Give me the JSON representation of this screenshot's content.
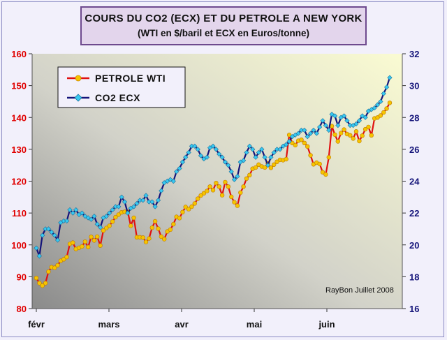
{
  "title": {
    "line1": "COURS DU CO2 (ECX) ET DU PETROLE A NEW YORK",
    "line2": "(WTI en $/baril et ECX en Euros/tonne)"
  },
  "credit": "RayBon Juillet 2008",
  "colors": {
    "wti_line": "#e01010",
    "wti_marker": "#f5c400",
    "ecx_line": "#14147a",
    "ecx_marker": "#38c8f0",
    "left_axis": "#e00000",
    "right_axis": "#15157a"
  },
  "chart_data": {
    "type": "line",
    "title": "COURS DU CO2 (ECX) ET DU PETROLE A NEW YORK",
    "subtitle": "(WTI en $/baril et ECX en Euros/tonne)",
    "x_labels": [
      "févr",
      "mars",
      "avr",
      "mai",
      "juin"
    ],
    "y_left": {
      "lim": [
        80,
        160
      ],
      "ticks": [
        80,
        90,
        100,
        110,
        120,
        130,
        140,
        150,
        160
      ]
    },
    "y_right": {
      "lim": [
        16,
        32
      ],
      "ticks": [
        16,
        18,
        20,
        22,
        24,
        26,
        28,
        30,
        32
      ]
    },
    "grid": false,
    "legend_position": "top-left",
    "series": [
      {
        "name": "PETROLE WTI",
        "axis": "left",
        "marker": "circle",
        "values": [
          89.6,
          88.0,
          87.2,
          88.0,
          91.6,
          93.0,
          92.8,
          93.6,
          95.0,
          95.5,
          96.2,
          100.3,
          100.7,
          98.7,
          99.1,
          99.5,
          101.0,
          99.3,
          102.5,
          101.4,
          102.6,
          99.8,
          104.5,
          105.3,
          106.0,
          107.3,
          108.7,
          109.5,
          110.2,
          110.4,
          110.4,
          106.0,
          108.5,
          102.4,
          102.4,
          102.3,
          100.9,
          102.0,
          105.4,
          107.4,
          105.1,
          102.6,
          101.8,
          104.2,
          104.8,
          106.5,
          108.8,
          108.4,
          110.3,
          111.9,
          111.2,
          112.0,
          113.0,
          114.5,
          115.5,
          116.2,
          116.9,
          118.3,
          117.2,
          119.4,
          118.3,
          115.6,
          119.7,
          118.3,
          115.1,
          113.4,
          112.3,
          116.4,
          118.3,
          120.8,
          121.9,
          123.9,
          124.3,
          125.2,
          124.6,
          124.3,
          125.6,
          124.2,
          125.2,
          126.1,
          126.7,
          126.6,
          126.9,
          134.5,
          132.0,
          131.3,
          132.7,
          133.0,
          132.0,
          130.9,
          128.1,
          125.3,
          125.8,
          125.4,
          122.8,
          122.1,
          127.5,
          137.3,
          134.6,
          132.5,
          135.1,
          136.2,
          134.8,
          134.4,
          133.4,
          135.6,
          132.6,
          134.3,
          136.3,
          137.0,
          134.4,
          139.7,
          140.0,
          140.6,
          141.6,
          142.8,
          144.6
        ]
      },
      {
        "name": "CO2 ECX",
        "axis": "right",
        "marker": "diamond",
        "values": [
          19.8,
          19.3,
          20.6,
          21.0,
          21.0,
          20.8,
          20.6,
          20.3,
          21.4,
          21.5,
          21.5,
          22.2,
          22.0,
          22.2,
          21.9,
          22.0,
          21.8,
          21.7,
          21.6,
          21.8,
          21.3,
          21.1,
          21.7,
          21.8,
          22.0,
          22.2,
          22.4,
          22.4,
          23.0,
          22.7,
          22.0,
          22.3,
          22.4,
          22.6,
          22.8,
          22.8,
          23.1,
          22.7,
          22.7,
          22.4,
          22.8,
          23.4,
          23.9,
          24.0,
          24.1,
          24.0,
          24.6,
          24.8,
          25.2,
          25.5,
          25.8,
          26.2,
          26.2,
          26.0,
          25.6,
          25.4,
          25.5,
          26.1,
          26.2,
          26.0,
          25.7,
          25.5,
          25.2,
          25.0,
          24.6,
          24.1,
          24.3,
          25.2,
          25.3,
          25.8,
          26.2,
          26.0,
          25.5,
          25.8,
          26.0,
          25.5,
          25.0,
          25.5,
          25.8,
          26.0,
          26.0,
          26.2,
          26.3,
          26.5,
          26.8,
          26.9,
          27.0,
          27.2,
          27.2,
          26.8,
          27.0,
          27.2,
          27.0,
          27.4,
          27.8,
          27.5,
          27.2,
          28.2,
          28.1,
          27.5,
          28.0,
          28.1,
          27.8,
          27.5,
          27.5,
          27.6,
          27.8,
          28.1,
          28.0,
          28.4,
          28.5,
          28.6,
          28.8,
          29.0,
          29.5,
          29.9,
          30.5
        ]
      }
    ]
  }
}
